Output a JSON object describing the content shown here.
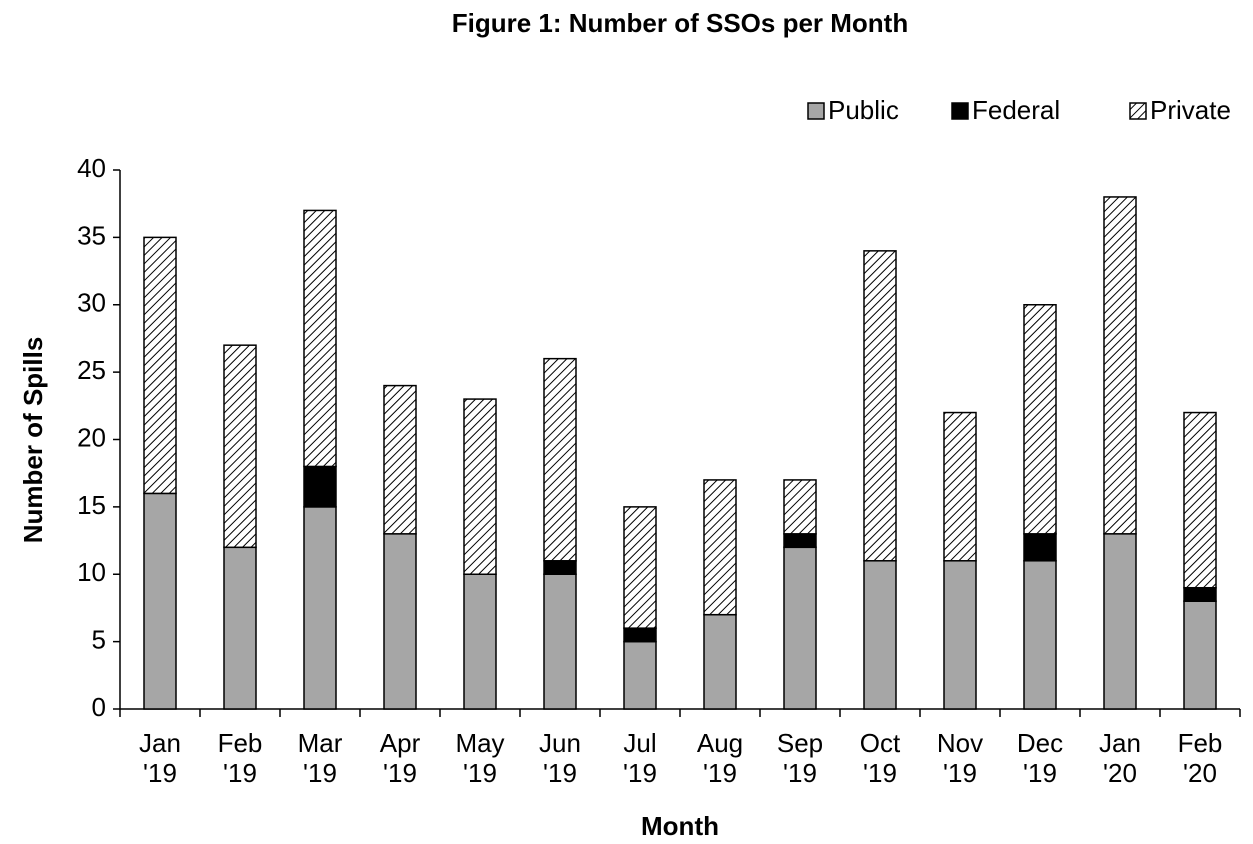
{
  "chart_data": {
    "type": "stacked_bar",
    "title": "Figure 1: Number of SSOs per Month",
    "xlabel": "Month",
    "ylabel": "Number of Spills",
    "categories": [
      "Jan '19",
      "Feb '19",
      "Mar '19",
      "Apr '19",
      "May '19",
      "Jun '19",
      "Jul '19",
      "Aug '19",
      "Sep '19",
      "Oct '19",
      "Nov '19",
      "Dec '19",
      "Jan '20",
      "Feb '20"
    ],
    "series": [
      {
        "name": "Public",
        "color": "#a6a6a6",
        "hatch": false,
        "values": [
          16,
          12,
          15,
          13,
          10,
          10,
          5,
          7,
          12,
          11,
          11,
          11,
          13,
          8
        ]
      },
      {
        "name": "Federal",
        "color": "#000000",
        "hatch": false,
        "values": [
          0,
          0,
          3,
          0,
          0,
          1,
          1,
          0,
          1,
          0,
          0,
          2,
          0,
          1
        ]
      },
      {
        "name": "Private",
        "color": "#ffffff",
        "hatch": true,
        "values": [
          19,
          15,
          19,
          11,
          13,
          15,
          9,
          10,
          4,
          23,
          11,
          17,
          25,
          13
        ]
      }
    ],
    "ylim": [
      0,
      40
    ],
    "yticks": [
      0,
      5,
      10,
      15,
      20,
      25,
      30,
      35,
      40
    ],
    "grid": false,
    "legend": "top-right"
  }
}
